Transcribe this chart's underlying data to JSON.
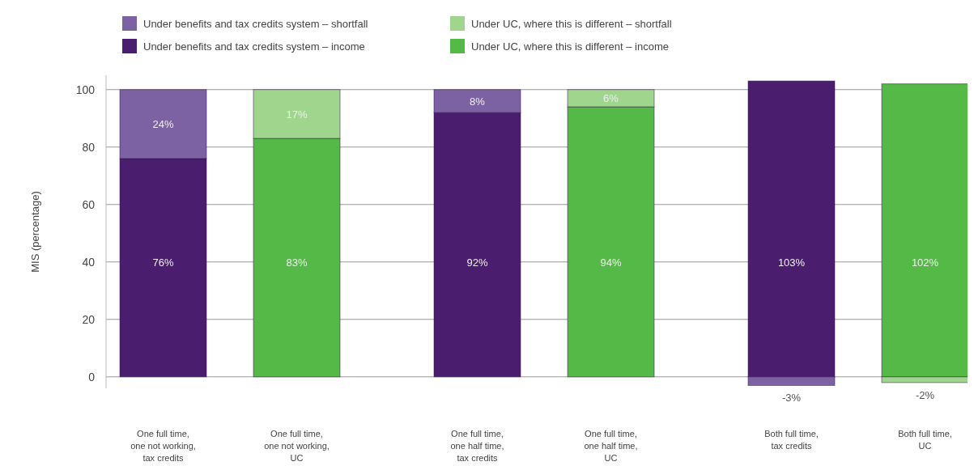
{
  "chart_data": {
    "type": "bar",
    "stacked": true,
    "ylabel": "MIS (percentage)",
    "categories": [
      "One full time,\none not working,\ntax credits",
      "One full time,\none not working,\nUC",
      "One full time,\none half time,\ntax credits",
      "One full time,\none half time,\nUC",
      "Both full time,\ntax credits",
      "Both full time,\nUC"
    ],
    "series": [
      {
        "name": "Under benefits and tax credits system – income",
        "color": "#4a1d6e",
        "values": [
          76,
          null,
          92,
          null,
          103,
          null
        ],
        "value_labels": [
          "76%",
          null,
          "92%",
          null,
          "103%",
          null
        ]
      },
      {
        "name": "Under UC, where this is different – income",
        "color": "#55b947",
        "values": [
          null,
          83,
          null,
          94,
          null,
          102
        ],
        "value_labels": [
          null,
          "83%",
          null,
          "94%",
          null,
          "102%"
        ]
      },
      {
        "name": "Under benefits and tax credits system – shortfall",
        "color": "#7d62a3",
        "values": [
          24,
          null,
          8,
          null,
          -3,
          null
        ],
        "value_labels": [
          "24%",
          null,
          "8%",
          null,
          "-3%",
          null
        ]
      },
      {
        "name": "Under UC, where this is different – shortfall",
        "color": "#9fd58d",
        "values": [
          null,
          17,
          null,
          6,
          null,
          -2
        ],
        "value_labels": [
          null,
          "17%",
          null,
          "6%",
          null,
          "-2%"
        ]
      }
    ],
    "ylim": [
      -4,
      105
    ],
    "yticks": [
      0,
      20,
      40,
      60,
      80,
      100
    ],
    "grid": "y",
    "legend": "top left"
  }
}
